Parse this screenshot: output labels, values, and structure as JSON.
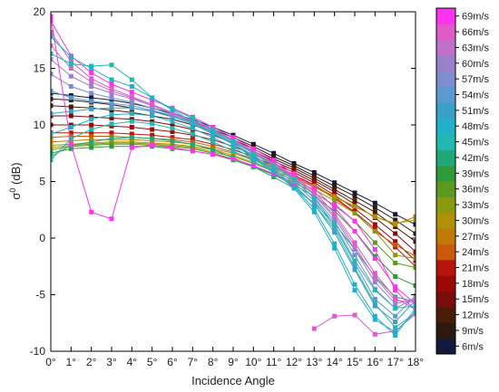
{
  "chart_data": {
    "type": "line",
    "xlabel": "Incidence Angle",
    "ylabel": "σ",
    "ylabel_sup": "0",
    "ylabel_unit": " (dB)",
    "x": [
      0,
      1,
      2,
      3,
      4,
      5,
      6,
      7,
      8,
      9,
      10,
      11,
      12,
      13,
      14,
      15,
      16,
      17,
      18
    ],
    "x_tick_labels": [
      "0°",
      "1°",
      "2°",
      "3°",
      "4°",
      "5°",
      "6°",
      "7°",
      "8°",
      "9°",
      "10°",
      "11°",
      "12°",
      "13°",
      "14°",
      "15°",
      "16°",
      "17°",
      "18°"
    ],
    "xlim": [
      0,
      18
    ],
    "ylim": [
      -10,
      20
    ],
    "y_ticks": [
      -10,
      -5,
      0,
      5,
      10,
      15,
      20
    ],
    "grid": false,
    "colorbar": {
      "labels": [
        "6m/s",
        "9m/s",
        "12m/s",
        "15m/s",
        "18m/s",
        "21m/s",
        "24m/s",
        "27m/s",
        "30m/s",
        "33m/s",
        "36m/s",
        "39m/s",
        "42m/s",
        "45m/s",
        "48m/s",
        "51m/s",
        "54m/s",
        "57m/s",
        "60m/s",
        "63m/s",
        "66m/s",
        "69m/s"
      ],
      "colors": [
        "#141a3c",
        "#2b1a10",
        "#4a1c08",
        "#7a0c0c",
        "#9a0808",
        "#b8140c",
        "#c85a0a",
        "#c07a08",
        "#b09008",
        "#8a9a10",
        "#5a9a20",
        "#2e9a3a",
        "#20a878",
        "#22b8b0",
        "#20b0c8",
        "#3aa0c8",
        "#5a9ad0",
        "#7e8cd0",
        "#9a80cc",
        "#c070c8",
        "#e05ac8",
        "#ff33ee"
      ]
    },
    "series": [
      {
        "color": "#141a3c",
        "values": [
          12.8,
          12.6,
          12.4,
          12.2,
          11.9,
          11.5,
          11.0,
          10.5,
          9.8,
          9.1,
          8.3,
          7.5,
          6.6,
          5.8,
          4.9,
          4.0,
          3.1,
          2.1,
          1.2
        ]
      },
      {
        "color": "#2b1a10",
        "values": [
          12.3,
          12.2,
          12.0,
          11.8,
          11.5,
          11.2,
          10.8,
          10.3,
          9.6,
          8.9,
          8.1,
          7.2,
          6.4,
          5.5,
          4.6,
          3.7,
          2.7,
          1.6,
          0.4
        ]
      },
      {
        "color": "#4a1c08",
        "values": [
          11.7,
          11.6,
          11.5,
          11.3,
          11.1,
          10.8,
          10.5,
          10.0,
          9.4,
          8.7,
          7.9,
          7.0,
          6.2,
          5.3,
          4.3,
          3.3,
          2.3,
          1.0,
          -0.3
        ]
      },
      {
        "color": "#7a0c0c",
        "values": [
          10.8,
          10.8,
          10.7,
          10.6,
          10.5,
          10.3,
          10.0,
          9.6,
          9.1,
          8.4,
          7.7,
          6.8,
          6.0,
          5.1,
          4.1,
          3.0,
          1.8,
          0.4,
          -1.2
        ]
      },
      {
        "color": "#9a0808",
        "values": [
          10.0,
          10.0,
          10.0,
          9.9,
          9.8,
          9.6,
          9.4,
          9.1,
          8.7,
          8.1,
          7.4,
          6.6,
          5.8,
          4.9,
          3.8,
          2.6,
          1.2,
          -0.3,
          -2.0
        ]
      },
      {
        "color": "#b8140c",
        "values": [
          9.3,
          9.3,
          9.3,
          9.3,
          9.2,
          9.1,
          8.9,
          8.7,
          8.3,
          7.8,
          7.2,
          6.4,
          5.6,
          4.7,
          3.6,
          2.3,
          0.8,
          -0.8,
          -2.5
        ]
      },
      {
        "color": "#c85a0a",
        "values": [
          8.9,
          9.0,
          9.0,
          9.0,
          8.9,
          8.8,
          8.7,
          8.5,
          8.1,
          7.6,
          7.0,
          6.3,
          5.5,
          4.6,
          3.5,
          2.2,
          0.6,
          -0.6,
          -1.6
        ]
      },
      {
        "color": "#c07a08",
        "values": [
          8.5,
          8.6,
          8.7,
          8.7,
          8.7,
          8.6,
          8.5,
          8.3,
          7.9,
          7.5,
          6.9,
          6.2,
          5.4,
          4.6,
          3.7,
          2.8,
          1.9,
          1.2,
          1.9
        ]
      },
      {
        "color": "#b09008",
        "values": [
          8.2,
          8.3,
          8.4,
          8.5,
          8.5,
          8.4,
          8.3,
          8.1,
          7.8,
          7.3,
          6.7,
          6.0,
          5.3,
          4.5,
          3.6,
          2.8,
          1.9,
          1.3,
          1.6
        ]
      },
      {
        "color": "#8a9a10",
        "values": [
          8.0,
          8.2,
          8.3,
          8.4,
          8.4,
          8.3,
          8.2,
          8.0,
          7.6,
          7.2,
          6.6,
          5.9,
          5.1,
          4.3,
          3.3,
          2.2,
          0.6,
          -1.5,
          -1.8
        ]
      },
      {
        "color": "#5a9a20",
        "values": [
          7.8,
          8.1,
          8.2,
          8.3,
          8.3,
          8.2,
          8.1,
          7.9,
          7.5,
          7.0,
          6.4,
          5.7,
          4.9,
          4.0,
          2.9,
          1.5,
          -0.4,
          -2.2,
          -2.6
        ]
      },
      {
        "color": "#2e9a3a",
        "values": [
          7.5,
          7.9,
          8.0,
          8.1,
          8.1,
          8.1,
          7.9,
          7.7,
          7.4,
          6.9,
          6.3,
          5.6,
          4.7,
          3.7,
          2.4,
          0.6,
          -1.6,
          -3.4,
          -4.2
        ]
      },
      {
        "color": "#20a878",
        "values": [
          7.2,
          8.2,
          8.5,
          8.8,
          8.9,
          8.8,
          8.6,
          8.3,
          7.8,
          7.1,
          6.3,
          5.4,
          4.4,
          3.1,
          1.3,
          -1.0,
          -3.4,
          -5.2,
          -5.6
        ]
      },
      {
        "color": "#22b8b0",
        "values": [
          6.9,
          8.8,
          9.6,
          10.1,
          10.3,
          10.1,
          9.7,
          9.2,
          8.5,
          7.7,
          6.8,
          5.8,
          4.6,
          3.0,
          0.8,
          -2.6,
          -5.8,
          -7.9,
          -6.6
        ]
      },
      {
        "color": "#20b0c8",
        "values": [
          9.2,
          9.8,
          10.5,
          10.9,
          11.0,
          10.8,
          10.3,
          9.7,
          8.9,
          8.0,
          7.0,
          5.9,
          4.5,
          2.6,
          -0.5,
          -4.1,
          -6.9,
          -8.6,
          -6.2
        ]
      },
      {
        "color": "#3aa0c8",
        "values": [
          11.0,
          11.2,
          11.4,
          11.5,
          11.5,
          11.2,
          10.7,
          10.1,
          9.2,
          8.3,
          7.2,
          6.0,
          4.7,
          3.0,
          0.5,
          -2.8,
          -6.0,
          -7.4,
          -5.5
        ]
      },
      {
        "color": "#5a9ad0",
        "values": [
          13.0,
          12.4,
          12.1,
          11.9,
          11.7,
          11.3,
          10.8,
          10.2,
          9.3,
          8.4,
          7.3,
          6.2,
          4.9,
          3.3,
          1.0,
          -2.2,
          -5.4,
          -6.9,
          -5.1
        ]
      },
      {
        "color": "#7e8cd0",
        "values": [
          14.5,
          13.4,
          12.8,
          12.4,
          12.0,
          11.5,
          10.9,
          10.2,
          9.4,
          8.5,
          7.5,
          6.4,
          5.1,
          3.6,
          1.5,
          -1.5,
          -4.5,
          -6.2,
          -5.3
        ]
      },
      {
        "color": "#9a80cc",
        "values": [
          15.8,
          14.3,
          13.4,
          12.8,
          12.3,
          11.7,
          11.0,
          10.3,
          9.5,
          8.6,
          7.6,
          6.5,
          5.3,
          3.8,
          1.8,
          -1.0,
          -3.9,
          -5.8,
          -5.4
        ]
      },
      {
        "color": "#c070c8",
        "values": [
          17.0,
          15.0,
          13.8,
          13.0,
          12.4,
          11.8,
          11.1,
          10.4,
          9.6,
          8.7,
          7.7,
          6.6,
          5.4,
          3.9,
          2.0,
          -0.7,
          -3.5,
          -5.5,
          -5.7
        ]
      },
      {
        "color": "#e05ac8",
        "values": [
          18.2,
          15.6,
          14.1,
          13.2,
          12.5,
          11.8,
          11.1,
          10.4,
          9.6,
          8.7,
          7.7,
          6.7,
          5.5,
          4.1,
          2.2,
          -0.4,
          -3.1,
          -5.3,
          -6.3
        ]
      },
      {
        "color": "#ff33ee",
        "values": [
          19.6,
          8.3,
          2.3,
          1.7,
          8.0,
          8.2,
          8.0,
          7.7,
          7.4,
          7.0,
          6.4,
          5.7,
          4.6,
          null,
          3.0,
          1.5,
          -1.0,
          -4.6,
          -6.4
        ]
      },
      {
        "color": "#ff33ee",
        "values": [
          19.2,
          16.1,
          14.6,
          13.6,
          12.9,
          12.2,
          11.5,
          10.7,
          9.8,
          8.9,
          7.9,
          6.9,
          5.7,
          4.4,
          2.7,
          0.6,
          -1.8,
          -4.3,
          -5.8
        ]
      },
      {
        "color": "#e05ac8",
        "values": [
          null,
          null,
          null,
          null,
          null,
          null,
          null,
          null,
          null,
          null,
          null,
          null,
          null,
          -8.0,
          -6.9,
          -6.8,
          -8.5,
          -8.2,
          -6.7
        ]
      },
      {
        "color": "#22b8b0",
        "values": [
          16.3,
          15.4,
          15.2,
          15.3,
          14.0,
          12.4,
          11.4,
          10.6,
          9.6,
          8.6,
          7.5,
          6.4,
          5.2,
          3.5,
          1.2,
          -2.0,
          -4.6,
          -6.2,
          -6.0
        ]
      },
      {
        "color": "#20b0c8",
        "values": [
          17.8,
          16.0,
          15.0,
          14.0,
          13.4,
          12.4,
          11.3,
          10.3,
          9.3,
          8.3,
          7.1,
          5.9,
          4.4,
          2.3,
          -0.9,
          -4.6,
          -7.2,
          -8.3,
          -6.5
        ]
      }
    ]
  }
}
